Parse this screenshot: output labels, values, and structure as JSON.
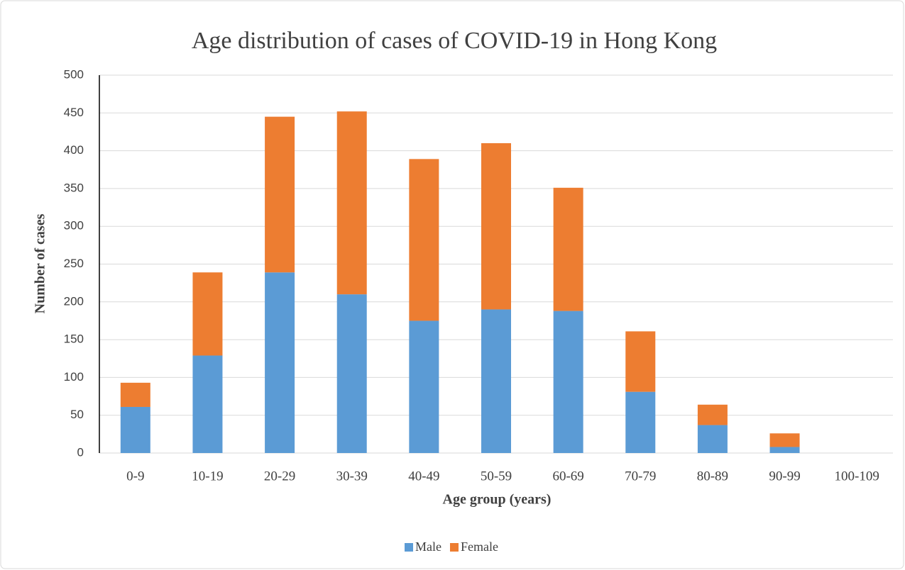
{
  "chart_data": {
    "type": "stacked_bar",
    "title": "Age distribution of cases of COVID-19 in Hong Kong",
    "x_label": "Age group (years)",
    "y_label": "Number of cases",
    "categories": [
      "0-9",
      "10-19",
      "20-29",
      "30-39",
      "40-49",
      "50-59",
      "60-69",
      "70-79",
      "80-89",
      "90-99",
      "100-109"
    ],
    "series": [
      {
        "name": "Male",
        "color": "#5b9bd5",
        "values": [
          61,
          129,
          239,
          210,
          175,
          190,
          188,
          81,
          37,
          8,
          0
        ]
      },
      {
        "name": "Female",
        "color": "#ed7d31",
        "values": [
          32,
          110,
          206,
          242,
          214,
          220,
          163,
          80,
          27,
          18,
          0
        ]
      }
    ],
    "ylim": [
      0,
      500
    ],
    "yticks": [
      0,
      50,
      100,
      150,
      200,
      250,
      300,
      350,
      400,
      450,
      500
    ],
    "grid": true,
    "legend": "bottom"
  }
}
